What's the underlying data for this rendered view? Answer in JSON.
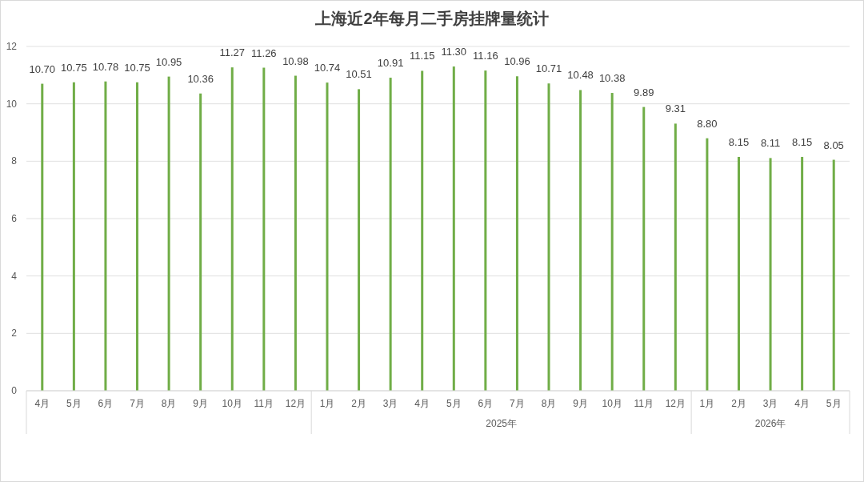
{
  "chart_data": {
    "type": "bar",
    "title": "上海近2年每月二手房挂牌量统计",
    "categories": [
      "4月",
      "5月",
      "6月",
      "7月",
      "8月",
      "9月",
      "10月",
      "11月",
      "12月",
      "1月",
      "2月",
      "3月",
      "4月",
      "5月",
      "6月",
      "7月",
      "8月",
      "9月",
      "10月",
      "11月",
      "12月",
      "1月",
      "2月",
      "3月",
      "4月",
      "5月"
    ],
    "series": [
      {
        "color": "#70ad47",
        "values": [
          10.7,
          10.75,
          10.78,
          10.75,
          10.95,
          10.36,
          11.27,
          11.26,
          10.98,
          10.74,
          10.51,
          10.91,
          11.15,
          11.3,
          11.16,
          10.96,
          10.71,
          10.48,
          10.38,
          9.89,
          9.31,
          8.8,
          8.15,
          8.11,
          8.15,
          8.05
        ],
        "value_labels": [
          "10.70",
          "10.75",
          "10.78",
          "10.75",
          "10.95",
          "10.36",
          "11.27",
          "11.26",
          "10.98",
          "10.74",
          "10.51",
          "10.91",
          "11.15",
          "11.30",
          "11.16",
          "10.96",
          "10.71",
          "10.48",
          "10.38",
          "9.89",
          "9.31",
          "8.80",
          "8.15",
          "8.11",
          "8.15",
          "8.05"
        ]
      }
    ],
    "annotations": [
      "2025年",
      "2026年"
    ],
    "ylim": [
      0,
      12
    ],
    "yticks": [
      0,
      2,
      4,
      6,
      8,
      10,
      12
    ],
    "grid": "y"
  }
}
